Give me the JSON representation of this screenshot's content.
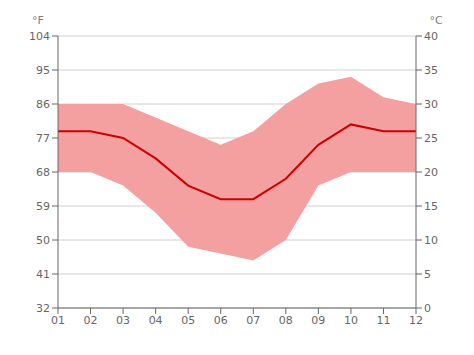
{
  "chart_data": {
    "type": "line",
    "categories": [
      "01",
      "02",
      "03",
      "04",
      "05",
      "06",
      "07",
      "08",
      "09",
      "10",
      "11",
      "12"
    ],
    "series": [
      {
        "type": "band",
        "color": "#f5a0a0",
        "axis": "y2",
        "low": [
          20,
          20,
          18,
          14,
          9,
          8,
          7,
          10,
          18,
          20,
          20,
          20
        ],
        "high": [
          30,
          30,
          30,
          28,
          26,
          24,
          26,
          30,
          33,
          34,
          31,
          30
        ]
      },
      {
        "type": "line",
        "color": "#cc0000",
        "axis": "y2",
        "values": [
          26,
          26,
          25,
          22,
          18,
          16,
          16,
          19,
          24,
          27,
          26,
          26
        ]
      }
    ],
    "y_label": "°F",
    "y2_label": "°C",
    "ylim": [
      32,
      104
    ],
    "yticks": [
      32,
      41,
      50,
      59,
      68,
      77,
      86,
      95,
      104
    ],
    "y2lim": [
      0,
      40
    ],
    "y2ticks": [
      0,
      5,
      10,
      15,
      20,
      25,
      30,
      35,
      40
    ],
    "grid": true
  }
}
